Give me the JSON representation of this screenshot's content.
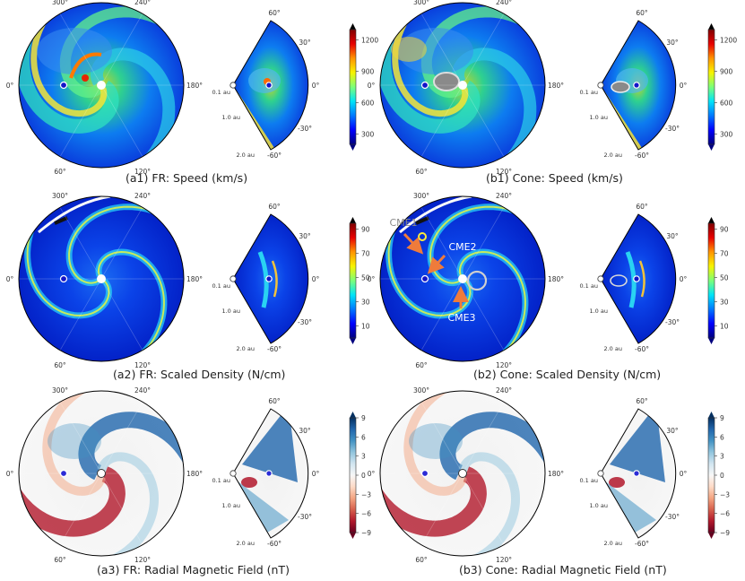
{
  "colors": {
    "jet": [
      "#00007f",
      "#0000ff",
      "#0078ff",
      "#00e4f8",
      "#7cff79",
      "#f8f400",
      "#ff9400",
      "#e80000",
      "#7f0000"
    ],
    "speed_top": [
      "#ffffff",
      "#bdbdbd",
      "#6f6f6f",
      "#000000"
    ],
    "density_top": [
      "#ffffff",
      "#b5b5b5",
      "#555555",
      "#000000"
    ],
    "rdbu": [
      "#67001f",
      "#b2182b",
      "#d6604d",
      "#f4a582",
      "#fddbc7",
      "#f7f7f7",
      "#d1e5f0",
      "#92c5de",
      "#4393c3",
      "#2166ac",
      "#053061"
    ],
    "arrow": "#ef7b3b",
    "cme_label": "#8a8a8a",
    "earth_marker": "#2b2bd6"
  },
  "chart_data": [
    {
      "id": "a1",
      "type": "heatmap",
      "title": "(a1) FR: Speed  (km/s)",
      "polar_ticks": [
        "300°",
        "240°",
        "0°",
        "180°",
        "60°",
        "120°"
      ],
      "wedge_angle_ticks": [
        "60°",
        "30°",
        "0°",
        "-30°",
        "-60°"
      ],
      "wedge_radius_ticks": [
        "0.1 au",
        "1.0 au",
        "2.0 au"
      ],
      "colorbar": {
        "ticks": [
          "1200",
          "900",
          "600",
          "300"
        ],
        "values": [
          1200,
          900,
          600,
          300
        ],
        "range": [
          200,
          1300
        ],
        "colormap": "jet"
      }
    },
    {
      "id": "b1",
      "type": "heatmap",
      "title": "(b1) Cone: Speed  (km/s)",
      "polar_ticks": [
        "300°",
        "240°",
        "0°",
        "180°",
        "60°",
        "120°"
      ],
      "wedge_angle_ticks": [
        "60°",
        "30°",
        "0°",
        "-30°",
        "-60°"
      ],
      "wedge_radius_ticks": [
        "0.1 au",
        "1.0 au",
        "2.0 au"
      ],
      "colorbar": {
        "ticks": [
          "1200",
          "900",
          "600",
          "300"
        ],
        "values": [
          1200,
          900,
          600,
          300
        ],
        "range": [
          200,
          1300
        ],
        "colormap": "jet"
      }
    },
    {
      "id": "a2",
      "type": "heatmap",
      "title": "(a2) FR: Scaled Density  (N/cm)",
      "polar_ticks": [
        "300°",
        "240°",
        "0°",
        "180°",
        "60°",
        "120°"
      ],
      "wedge_angle_ticks": [
        "60°",
        "30°",
        "0°",
        "-30°",
        "-60°"
      ],
      "wedge_radius_ticks": [
        "0.1 au",
        "1.0 au",
        "2.0 au"
      ],
      "colorbar": {
        "ticks": [
          "90",
          "70",
          "50",
          "30",
          "10"
        ],
        "values": [
          90,
          70,
          50,
          30,
          10
        ],
        "range": [
          0,
          95
        ],
        "colormap": "jet"
      }
    },
    {
      "id": "b2",
      "type": "heatmap",
      "title": "(b2) Cone: Scaled Density  (N/cm)",
      "polar_ticks": [
        "300°",
        "240°",
        "0°",
        "180°",
        "60°",
        "120°"
      ],
      "wedge_angle_ticks": [
        "60°",
        "30°",
        "0°",
        "-30°",
        "-60°"
      ],
      "wedge_radius_ticks": [
        "0.1 au",
        "1.0 au",
        "2.0 au"
      ],
      "annotations": [
        "CME1",
        "CME2",
        "CME3"
      ],
      "colorbar": {
        "ticks": [
          "90",
          "70",
          "50",
          "30",
          "10"
        ],
        "values": [
          90,
          70,
          50,
          30,
          10
        ],
        "range": [
          0,
          95
        ],
        "colormap": "jet"
      }
    },
    {
      "id": "a3",
      "type": "heatmap",
      "title": "(a3) FR: Radial Magnetic Field  (nT)",
      "polar_ticks": [
        "300°",
        "240°",
        "0°",
        "180°",
        "60°",
        "120°"
      ],
      "wedge_angle_ticks": [
        "60°",
        "30°",
        "0°",
        "-30°",
        "-60°"
      ],
      "wedge_radius_ticks": [
        "0.1 au",
        "1.0 au",
        "2.0 au"
      ],
      "colorbar": {
        "ticks": [
          "9",
          "6",
          "3",
          "0",
          "−3",
          "−6",
          "−9"
        ],
        "values": [
          9,
          6,
          3,
          0,
          -3,
          -6,
          -9
        ],
        "range": [
          -9,
          9
        ],
        "colormap": "RdBu"
      }
    },
    {
      "id": "b3",
      "type": "heatmap",
      "title": "(b3) Cone: Radial Magnetic Field  (nT)",
      "polar_ticks": [
        "300°",
        "240°",
        "0°",
        "180°",
        "60°",
        "120°"
      ],
      "wedge_angle_ticks": [
        "60°",
        "30°",
        "0°",
        "-30°",
        "-60°"
      ],
      "wedge_radius_ticks": [
        "0.1 au",
        "1.0 au",
        "2.0 au"
      ],
      "colorbar": {
        "ticks": [
          "9",
          "6",
          "3",
          "0",
          "−3",
          "−6",
          "−9"
        ],
        "values": [
          9,
          6,
          3,
          0,
          -3,
          -6,
          -9
        ],
        "range": [
          -9,
          9
        ],
        "colormap": "RdBu"
      }
    }
  ]
}
